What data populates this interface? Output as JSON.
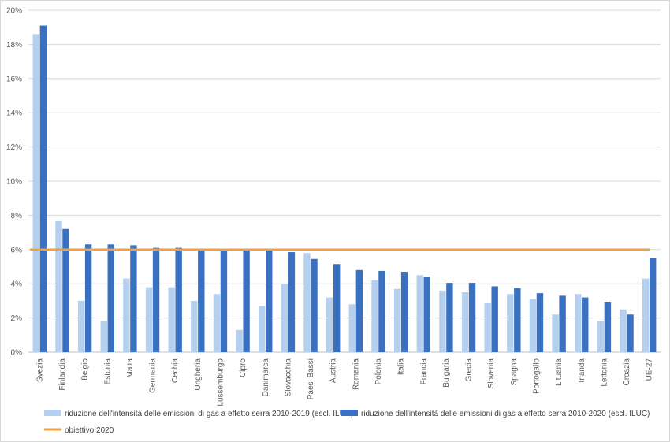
{
  "chart_data": {
    "type": "bar",
    "categories": [
      "Svezia",
      "Finlandia",
      "Belgio",
      "Estonia",
      "Malta",
      "Germania",
      "Cechia",
      "Ungheria",
      "Lussemburgo",
      "Cipro",
      "Danimarca",
      "Slovacchia",
      "Paesi Bassi",
      "Austria",
      "Romania",
      "Polonia",
      "Italia",
      "Francia",
      "Bulgaria",
      "Grecia",
      "Slovenia",
      "Spagna",
      "Portogallo",
      "Lituania",
      "Irlanda",
      "Lettonia",
      "Croazia",
      "UE-27"
    ],
    "series": [
      {
        "name": "riduzione dell'intensità delle emissioni di gas a effetto serra 2010-2019 (escl. ILUC)",
        "color": "#b4d0ee",
        "values": [
          18.6,
          7.7,
          3.0,
          1.8,
          4.3,
          3.8,
          3.8,
          3.0,
          3.4,
          1.3,
          2.7,
          4.0,
          5.8,
          3.2,
          2.8,
          4.2,
          3.7,
          4.5,
          3.6,
          3.5,
          2.9,
          3.4,
          3.1,
          2.2,
          3.4,
          1.8,
          2.5,
          4.3
        ]
      },
      {
        "name": "riduzione dell'intensità delle emissioni di gas a effetto serra 2010-2020 (escl. ILUC)",
        "color": "#3a70c0",
        "values": [
          19.1,
          7.2,
          6.3,
          6.3,
          6.25,
          6.1,
          6.1,
          6.0,
          6.0,
          6.0,
          6.0,
          5.85,
          5.45,
          5.15,
          4.8,
          4.75,
          4.7,
          4.4,
          4.05,
          4.05,
          3.85,
          3.75,
          3.45,
          3.3,
          3.2,
          2.95,
          2.2,
          5.5
        ]
      }
    ],
    "target_line": {
      "name": "obiettivo 2020",
      "value": 6.0,
      "color": "#f0a040"
    },
    "yticks": [
      "0%",
      "2%",
      "4%",
      "6%",
      "8%",
      "10%",
      "12%",
      "14%",
      "16%",
      "18%",
      "20%"
    ],
    "ylim": [
      0,
      20
    ],
    "grid": true,
    "legend_position": "bottom-left"
  }
}
